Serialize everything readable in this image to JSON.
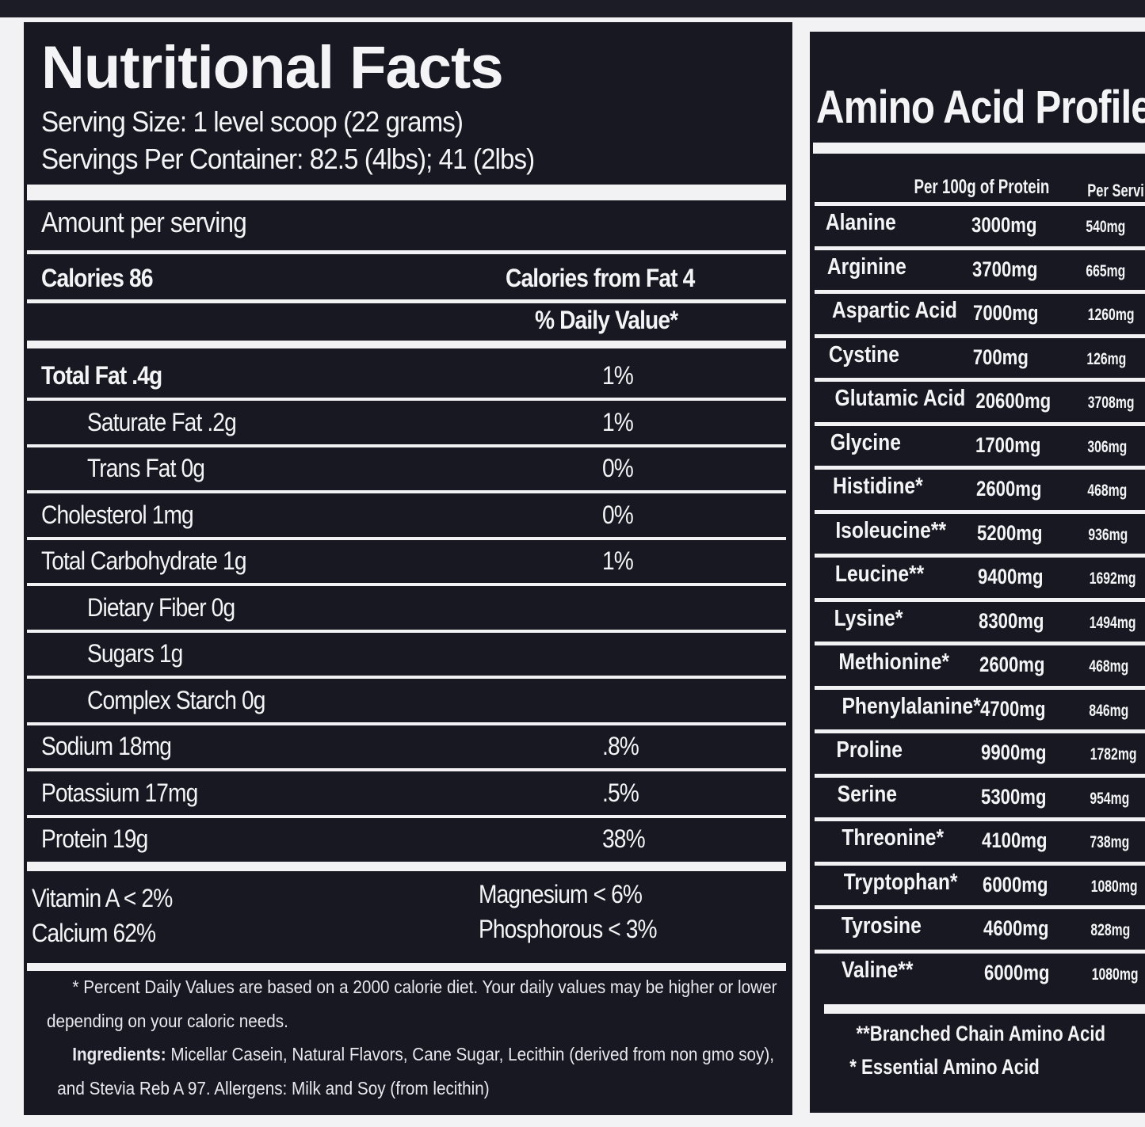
{
  "nutrition": {
    "title": "Nutritional Facts",
    "serving_size": "Serving Size: 1 level scoop (22 grams)",
    "servings_per_container": "Servings Per Container: 82.5 (4lbs); 41 (2lbs)",
    "amount_per_serving": "Amount per serving",
    "calories": "Calories 86",
    "calories_from_fat": "Calories from Fat 4",
    "daily_value_header": "% Daily Value*",
    "rows": [
      {
        "label": "Total Fat .4g",
        "dv": "1%"
      },
      {
        "label": "Saturate Fat .2g",
        "dv": "1%"
      },
      {
        "label": "Trans Fat 0g",
        "dv": "0%"
      },
      {
        "label": "Cholesterol 1mg",
        "dv": "0%"
      },
      {
        "label": "Total Carbohydrate 1g",
        "dv": "1%"
      },
      {
        "label": "Dietary Fiber 0g",
        "dv": ""
      },
      {
        "label": "Sugars 1g",
        "dv": ""
      },
      {
        "label": "Complex Starch 0g",
        "dv": ""
      },
      {
        "label": "Sodium 18mg",
        "dv": ".8%"
      },
      {
        "label": "Potassium 17mg",
        "dv": ".5%"
      },
      {
        "label": "Protein 19g",
        "dv": "38%"
      }
    ],
    "vitamins": {
      "vitamin_a": "Vitamin A < 2%",
      "calcium": "Calcium  62%",
      "magnesium": "Magnesium < 6%",
      "phosphorous": "Phosphorous < 3%"
    },
    "footnote_1": "* Percent Daily Values are based on a 2000 calorie diet. Your daily values may be higher or lower",
    "footnote_2": "depending on your caloric needs.",
    "ingredients_label": "Ingredients:",
    "ingredients_1": " Micellar Casein, Natural Flavors, Cane Sugar, Lecithin (derived from non gmo soy),",
    "ingredients_2": "and Stevia Reb A 97. Allergens: Milk and Soy (from lecithin)"
  },
  "amino": {
    "title": "Amino Acid Profile",
    "col_per100": "Per 100g of Protein",
    "col_serving": "Per Serving",
    "rows": [
      {
        "name": "Alanine",
        "per100": "3000mg",
        "serving": "540mg"
      },
      {
        "name": "Arginine",
        "per100": "3700mg",
        "serving": "665mg"
      },
      {
        "name": "Aspartic Acid",
        "per100": "7000mg",
        "serving": "1260mg"
      },
      {
        "name": "Cystine",
        "per100": "700mg",
        "serving": "126mg"
      },
      {
        "name": "Glutamic Acid",
        "per100": "20600mg",
        "serving": "3708mg"
      },
      {
        "name": "Glycine",
        "per100": "1700mg",
        "serving": "306mg"
      },
      {
        "name": "Histidine*",
        "per100": "2600mg",
        "serving": "468mg"
      },
      {
        "name": "Isoleucine**",
        "per100": "5200mg",
        "serving": "936mg"
      },
      {
        "name": "Leucine**",
        "per100": "9400mg",
        "serving": "1692mg"
      },
      {
        "name": "Lysine*",
        "per100": "8300mg",
        "serving": "1494mg"
      },
      {
        "name": "Methionine*",
        "per100": "2600mg",
        "serving": "468mg"
      },
      {
        "name": "Phenylalanine*",
        "per100": "4700mg",
        "serving": "846mg"
      },
      {
        "name": "Proline",
        "per100": "9900mg",
        "serving": "1782mg"
      },
      {
        "name": "Serine",
        "per100": "5300mg",
        "serving": "954mg"
      },
      {
        "name": "Threonine*",
        "per100": "4100mg",
        "serving": "738mg"
      },
      {
        "name": "Tryptophan*",
        "per100": "6000mg",
        "serving": "1080mg"
      },
      {
        "name": "Tyrosine",
        "per100": "4600mg",
        "serving": "828mg"
      },
      {
        "name": "Valine**",
        "per100": "6000mg",
        "serving": "1080mg"
      }
    ],
    "legend_bcaa": "**Branched Chain Amino Acid",
    "legend_eaa": "*  Essential Amino Acid"
  }
}
